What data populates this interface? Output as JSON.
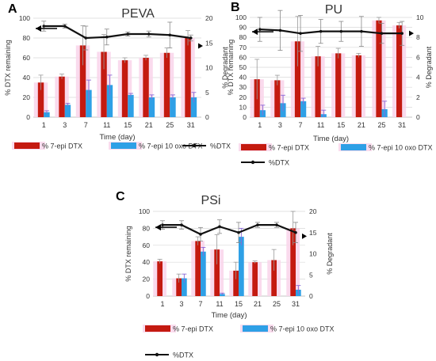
{
  "colors": {
    "epi": "#c41a10",
    "oxo": "#2ea0e6",
    "line": "#111111",
    "pink": "#f9d3ea",
    "violet": "#8a6ad6",
    "grid": "#d9d9d9"
  },
  "chart_data": [
    {
      "panel_letter": "A",
      "title": "PEVA",
      "type": "bar",
      "categories": [
        "1",
        "3",
        "7",
        "11",
        "15",
        "21",
        "25",
        "31"
      ],
      "xlabel": "Time (day)",
      "ylabel": "% DTX remaining",
      "y2label": "% Degradant",
      "ylim": [
        0,
        100
      ],
      "yticks": [
        0,
        20,
        40,
        60,
        80,
        100
      ],
      "y2lim": [
        0,
        20
      ],
      "y2ticks": [
        0,
        5,
        10,
        15,
        20
      ],
      "series": [
        {
          "name": "% 7-epi DTX",
          "role": "epi",
          "axis": "right",
          "values": [
            7,
            8.2,
            14.5,
            13.2,
            11.5,
            12,
            13,
            16
          ],
          "errors": [
            1.5,
            0.5,
            4,
            3.5,
            0.5,
            0.5,
            1,
            1.5
          ]
        },
        {
          "name": "% 7-epi 10 oxo DTX",
          "role": "oxo",
          "axis": "right",
          "values": [
            1,
            2.5,
            5.5,
            6.5,
            4.5,
            4,
            4,
            4
          ],
          "errors": [
            0.3,
            0.3,
            2,
            2,
            0.3,
            0.5,
            0.5,
            1
          ]
        },
        {
          "name": "%DTX",
          "role": "line",
          "axis": "left",
          "values": [
            92,
            92,
            80,
            81,
            84,
            84,
            83,
            80
          ],
          "errors": [
            5,
            2,
            12,
            8,
            2,
            3,
            13,
            3
          ]
        }
      ],
      "arrows": [
        {
          "direction": "left",
          "axis": "left"
        },
        {
          "direction": "right",
          "axis": "right"
        }
      ],
      "legend": {
        "placement": "bottom",
        "rows": [
          [
            "% 7-epi DTX",
            "% 7-epi 10 oxo DTX",
            "%DTX"
          ]
        ]
      }
    },
    {
      "panel_letter": "B",
      "title": "PU",
      "type": "bar",
      "categories": [
        "1",
        "3",
        "7",
        "11",
        "15",
        "21",
        "25",
        "31"
      ],
      "xlabel": "Time (day)",
      "ylabel": "% DTX remaining",
      "y2label": "% Degradant",
      "ylim": [
        0,
        100
      ],
      "yticks": [
        0,
        10,
        20,
        30,
        40,
        50,
        60,
        70,
        80,
        90,
        100
      ],
      "y2lim": [
        0,
        10
      ],
      "y2ticks": [
        0,
        2,
        4,
        6,
        8,
        10
      ],
      "series": [
        {
          "name": "% 7-epi DTX",
          "role": "epi",
          "axis": "right",
          "values": [
            3.8,
            3.7,
            7.6,
            6.1,
            6.4,
            6.2,
            9.7,
            9.2
          ],
          "errors": [
            2,
            0.5,
            2.5,
            1,
            0.5,
            0.2,
            0.3,
            0.3
          ]
        },
        {
          "name": "% 7-epi 10 oxo DTX",
          "role": "oxo",
          "axis": "right",
          "values": [
            0.7,
            1.4,
            1.6,
            0.3,
            0,
            0,
            0.8,
            0
          ],
          "errors": [
            0.5,
            0.8,
            0.3,
            0.4,
            0,
            0,
            0.8,
            0
          ]
        },
        {
          "name": "%DTX",
          "role": "line",
          "axis": "left",
          "values": [
            88,
            87,
            84,
            86,
            86,
            86,
            84,
            84
          ],
          "errors": [
            12,
            20,
            18,
            12,
            10,
            15,
            10,
            12
          ]
        }
      ],
      "arrows": [
        {
          "direction": "left",
          "axis": "left"
        },
        {
          "direction": "right",
          "axis": "right"
        }
      ],
      "legend": {
        "placement": "bottom",
        "rows": [
          [
            "% 7-epi DTX",
            "% 7-epi 10 oxo DTX"
          ],
          [
            "%DTX"
          ]
        ]
      }
    },
    {
      "panel_letter": "C",
      "title": "PSi",
      "type": "bar",
      "categories": [
        "1",
        "3",
        "7",
        "11",
        "15",
        "21",
        "25",
        "31"
      ],
      "xlabel": "Time (day)",
      "ylabel": "% DTX remaining",
      "y2label": "% Degradant",
      "ylim": [
        0,
        100
      ],
      "yticks": [
        0,
        20,
        40,
        60,
        80,
        100
      ],
      "y2lim": [
        0,
        20
      ],
      "y2ticks": [
        0,
        5,
        10,
        15,
        20
      ],
      "series": [
        {
          "name": "% 7-epi DTX",
          "role": "epi",
          "axis": "right",
          "values": [
            8.2,
            4.2,
            13,
            11,
            6,
            8,
            8.5,
            16
          ],
          "errors": [
            0.5,
            1,
            1,
            3.5,
            2,
            0.3,
            2.5,
            4
          ]
        },
        {
          "name": "% 7-epi 10 oxo DTX",
          "role": "oxo",
          "axis": "right",
          "values": [
            0,
            4.2,
            10.5,
            0.5,
            14,
            0,
            0,
            1.5
          ],
          "errors": [
            0,
            1,
            1,
            0.2,
            2,
            0,
            0,
            1
          ]
        },
        {
          "name": "%DTX",
          "role": "line",
          "axis": "left",
          "values": [
            84,
            84,
            73,
            82,
            75,
            84,
            84,
            75
          ],
          "errors": [
            5,
            5,
            8,
            8,
            12,
            3,
            3,
            12
          ]
        }
      ],
      "arrows": [
        {
          "direction": "left",
          "axis": "left"
        },
        {
          "direction": "right",
          "axis": "right"
        }
      ],
      "legend": {
        "placement": "bottom",
        "rows": [
          [
            "% 7-epi DTX",
            "% 7-epi 10 oxo DTX"
          ],
          [
            "%DTX"
          ]
        ]
      }
    }
  ]
}
